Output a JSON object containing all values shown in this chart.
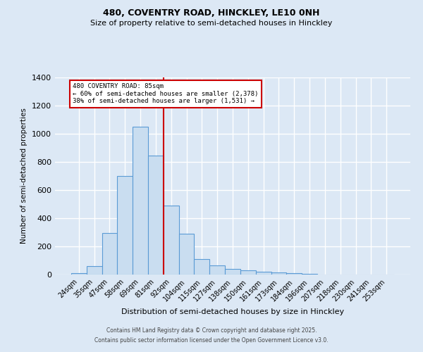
{
  "title1": "480, COVENTRY ROAD, HINCKLEY, LE10 0NH",
  "title2": "Size of property relative to semi-detached houses in Hinckley",
  "xlabel": "Distribution of semi-detached houses by size in Hinckley",
  "ylabel": "Number of semi-detached properties",
  "categories": [
    "24sqm",
    "35sqm",
    "47sqm",
    "58sqm",
    "69sqm",
    "81sqm",
    "92sqm",
    "104sqm",
    "115sqm",
    "127sqm",
    "138sqm",
    "150sqm",
    "161sqm",
    "173sqm",
    "184sqm",
    "196sqm",
    "207sqm",
    "218sqm",
    "230sqm",
    "241sqm",
    "253sqm"
  ],
  "values": [
    8,
    60,
    295,
    700,
    1050,
    845,
    490,
    290,
    110,
    65,
    40,
    32,
    20,
    15,
    8,
    3,
    1,
    1,
    0,
    0,
    0
  ],
  "bar_color": "#c9ddf0",
  "bar_edge_color": "#5b9bd5",
  "red_line_x": 5.5,
  "annotation_title": "480 COVENTRY ROAD: 85sqm",
  "annotation_line1": "← 60% of semi-detached houses are smaller (2,378)",
  "annotation_line2": "38% of semi-detached houses are larger (1,531) →",
  "annotation_box_color": "#ffffff",
  "annotation_box_edge": "#cc0000",
  "footer1": "Contains HM Land Registry data © Crown copyright and database right 2025.",
  "footer2": "Contains public sector information licensed under the Open Government Licence v3.0.",
  "bg_color": "#dce8f5",
  "plot_bg_color": "#dce8f5",
  "grid_color": "#ffffff",
  "ylim": [
    0,
    1400
  ],
  "yticks": [
    0,
    200,
    400,
    600,
    800,
    1000,
    1200,
    1400
  ]
}
